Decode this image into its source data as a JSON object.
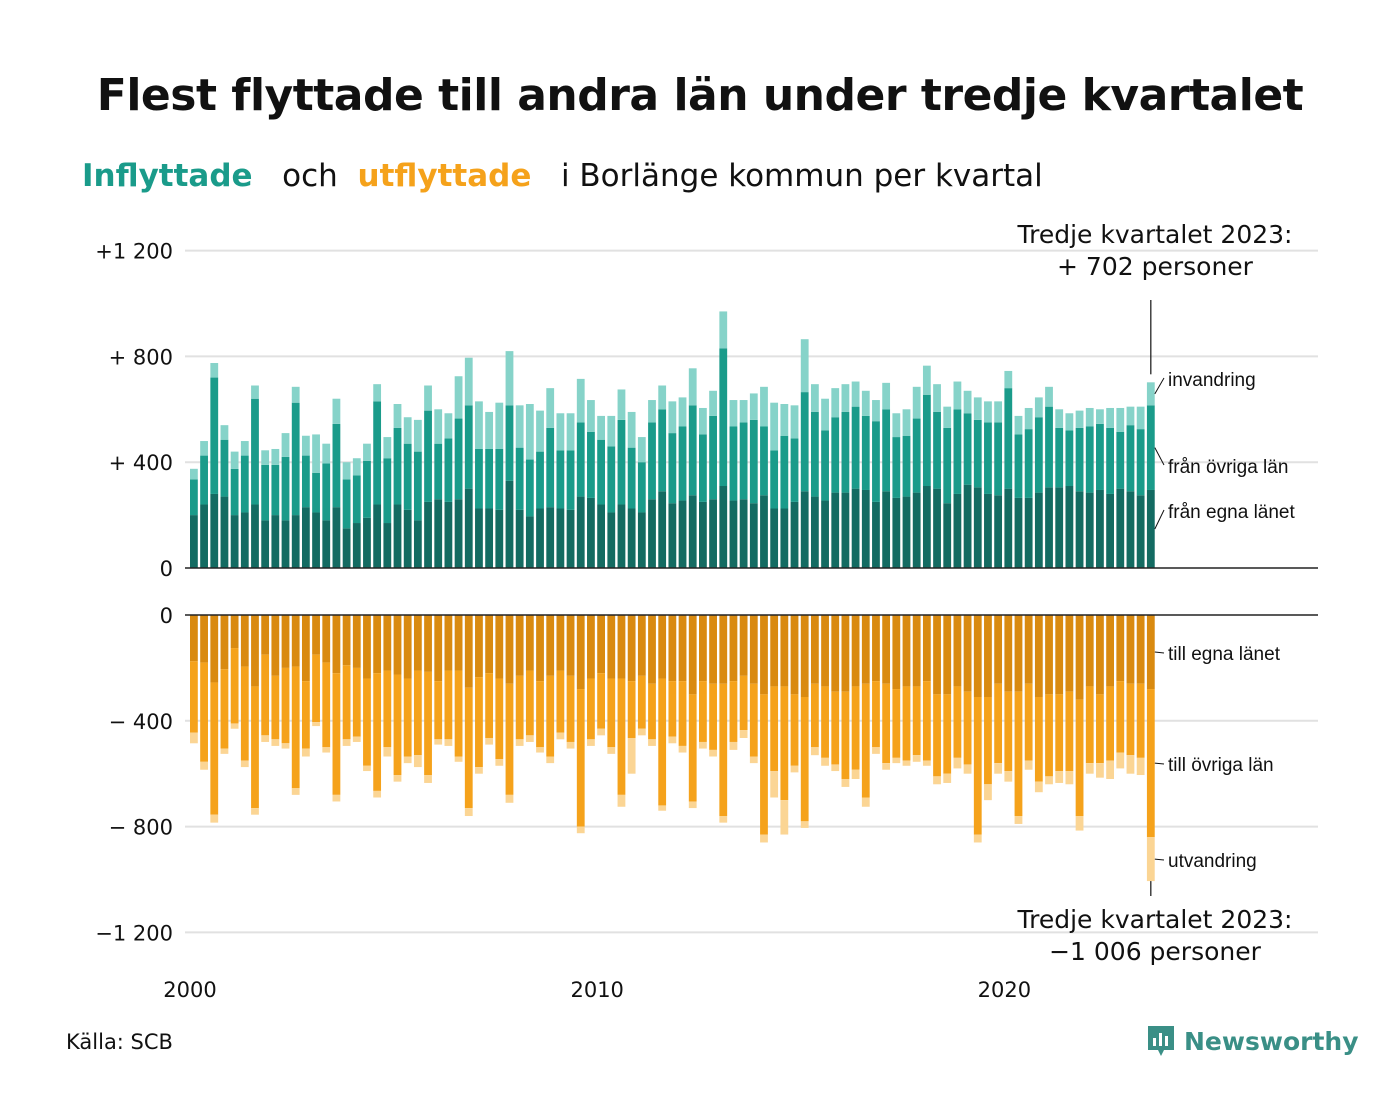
{
  "title": "Flest flyttade till andra län under tredje kvartalet",
  "subtitle": {
    "part1": "Inflyttade",
    "part2": "och",
    "part3": "utflyttade",
    "part4": "i Borlänge kommun per kvartal"
  },
  "source": "Källa: SCB",
  "logo_text": "Newsworthy",
  "colors": {
    "in_egna": "#136b62",
    "in_ovriga": "#1a9b8a",
    "in_invandring": "#86d3c9",
    "out_egna": "#d98a10",
    "out_ovriga": "#f5a21b",
    "out_utvandring": "#fbd594",
    "grid": "#e1e1e1",
    "axis": "#222222"
  },
  "annotations": {
    "top_line1": "Tredje kvartalet 2023:",
    "top_line2": "+ 702 personer",
    "bottom_line1": "Tredje kvartalet 2023:",
    "bottom_line2": "−1 006 personer"
  },
  "chart_data": {
    "type": "bar",
    "stacked": true,
    "x_start": "2000 Q1",
    "x_end": "2023 Q3",
    "periods_per_year": 4,
    "x_ticks": [
      {
        "year": 2000,
        "label": "2000"
      },
      {
        "year": 2010,
        "label": "2010"
      },
      {
        "year": 2020,
        "label": "2020"
      }
    ],
    "y_ticks_top": [
      {
        "value": 1200,
        "label": "+1 200"
      },
      {
        "value": 800,
        "label": "+  800"
      },
      {
        "value": 400,
        "label": "+  400"
      },
      {
        "value": 0,
        "label": "0"
      }
    ],
    "y_ticks_bottom": [
      {
        "value": 0,
        "label": "0"
      },
      {
        "value": -400,
        "label": "−  400"
      },
      {
        "value": -800,
        "label": "−  800"
      },
      {
        "value": -1200,
        "label": "−1 200"
      }
    ],
    "ylim_top": [
      0,
      1200
    ],
    "ylim_bottom": [
      -1200,
      0
    ],
    "series_top": [
      {
        "name": "från egna länet",
        "values": [
          200,
          240,
          280,
          270,
          200,
          210,
          240,
          180,
          200,
          180,
          200,
          230,
          210,
          180,
          230,
          150,
          170,
          190,
          240,
          170,
          240,
          220,
          180,
          250,
          260,
          250,
          260,
          300,
          225,
          225,
          220,
          330,
          220,
          195,
          225,
          230,
          225,
          220,
          270,
          265,
          240,
          210,
          240,
          225,
          210,
          260,
          290,
          245,
          255,
          275,
          250,
          260,
          310,
          255,
          260,
          245,
          275,
          225,
          225,
          250,
          290,
          270,
          255,
          285,
          285,
          300,
          295,
          250,
          290,
          265,
          270,
          285,
          310,
          300,
          245,
          280,
          315,
          305,
          280,
          275,
          300,
          265,
          265,
          285,
          305,
          305,
          310,
          290,
          285,
          295,
          280,
          300,
          290,
          275,
          295
        ]
      },
      {
        "name": "från övriga län",
        "values": [
          135,
          185,
          440,
          215,
          175,
          215,
          400,
          210,
          190,
          240,
          425,
          195,
          150,
          215,
          315,
          185,
          180,
          215,
          390,
          245,
          290,
          250,
          260,
          345,
          210,
          240,
          305,
          315,
          225,
          225,
          230,
          285,
          235,
          215,
          215,
          300,
          220,
          225,
          280,
          250,
          245,
          250,
          320,
          230,
          190,
          290,
          310,
          265,
          280,
          340,
          255,
          315,
          520,
          280,
          290,
          315,
          260,
          220,
          275,
          240,
          375,
          320,
          265,
          285,
          305,
          310,
          280,
          305,
          310,
          230,
          230,
          280,
          345,
          290,
          285,
          320,
          270,
          255,
          270,
          275,
          380,
          240,
          260,
          285,
          305,
          225,
          210,
          240,
          250,
          250,
          250,
          215,
          250,
          250,
          320
        ]
      },
      {
        "name": "invandring",
        "values": [
          40,
          55,
          55,
          55,
          65,
          55,
          50,
          55,
          60,
          90,
          60,
          75,
          145,
          75,
          95,
          65,
          65,
          65,
          65,
          80,
          90,
          100,
          120,
          95,
          130,
          95,
          160,
          180,
          180,
          140,
          175,
          205,
          160,
          210,
          155,
          150,
          140,
          140,
          165,
          120,
          90,
          115,
          115,
          135,
          95,
          85,
          90,
          120,
          110,
          140,
          100,
          95,
          140,
          100,
          85,
          100,
          150,
          180,
          120,
          125,
          200,
          105,
          120,
          110,
          105,
          95,
          95,
          80,
          100,
          90,
          100,
          120,
          110,
          105,
          80,
          105,
          85,
          85,
          80,
          80,
          65,
          70,
          80,
          75,
          75,
          70,
          65,
          65,
          70,
          55,
          75,
          90,
          70,
          85,
          87
        ]
      }
    ],
    "series_bottom": [
      {
        "name": "till egna länet",
        "values": [
          175,
          180,
          255,
          205,
          125,
          195,
          270,
          150,
          230,
          200,
          195,
          250,
          150,
          180,
          220,
          190,
          200,
          240,
          220,
          210,
          225,
          240,
          210,
          215,
          250,
          210,
          210,
          275,
          235,
          220,
          240,
          260,
          230,
          210,
          250,
          230,
          210,
          230,
          280,
          240,
          220,
          240,
          240,
          250,
          230,
          260,
          240,
          250,
          250,
          300,
          250,
          260,
          260,
          250,
          230,
          260,
          300,
          270,
          270,
          300,
          310,
          260,
          270,
          290,
          290,
          270,
          260,
          250,
          260,
          280,
          270,
          270,
          250,
          300,
          300,
          270,
          290,
          310,
          310,
          260,
          290,
          290,
          260,
          310,
          300,
          300,
          290,
          320,
          270,
          300,
          270,
          250,
          260,
          260,
          280
        ]
      },
      {
        "name": "till övriga län",
        "values": [
          270,
          375,
          500,
          300,
          285,
          355,
          460,
          305,
          240,
          285,
          460,
          255,
          255,
          320,
          460,
          280,
          260,
          330,
          445,
          290,
          380,
          295,
          320,
          390,
          220,
          260,
          325,
          455,
          340,
          245,
          305,
          420,
          240,
          245,
          250,
          305,
          235,
          250,
          520,
          230,
          210,
          260,
          440,
          215,
          200,
          210,
          480,
          210,
          245,
          405,
          230,
          250,
          500,
          230,
          205,
          275,
          530,
          320,
          430,
          270,
          470,
          240,
          270,
          275,
          330,
          315,
          430,
          250,
          300,
          260,
          280,
          260,
          300,
          310,
          300,
          270,
          275,
          520,
          330,
          300,
          300,
          470,
          290,
          320,
          310,
          290,
          300,
          440,
          290,
          260,
          280,
          270,
          270,
          280,
          560
        ]
      },
      {
        "name": "utvandring",
        "values": [
          40,
          30,
          30,
          20,
          20,
          25,
          25,
          25,
          25,
          20,
          25,
          30,
          15,
          20,
          25,
          25,
          20,
          20,
          25,
          35,
          25,
          25,
          45,
          30,
          20,
          25,
          20,
          30,
          25,
          25,
          25,
          30,
          25,
          25,
          20,
          25,
          25,
          25,
          25,
          25,
          25,
          25,
          45,
          135,
          25,
          25,
          20,
          25,
          25,
          25,
          25,
          25,
          25,
          30,
          30,
          25,
          30,
          100,
          130,
          25,
          25,
          30,
          30,
          25,
          30,
          35,
          35,
          25,
          25,
          20,
          20,
          25,
          20,
          30,
          35,
          40,
          35,
          30,
          60,
          40,
          40,
          30,
          35,
          40,
          30,
          45,
          50,
          55,
          40,
          55,
          70,
          60,
          70,
          65,
          166
        ]
      }
    ],
    "top_labels": [
      "invandring",
      "från övriga län",
      "från egna länet"
    ],
    "bottom_labels": [
      "till egna länet",
      "till övriga län",
      "utvandring"
    ]
  }
}
